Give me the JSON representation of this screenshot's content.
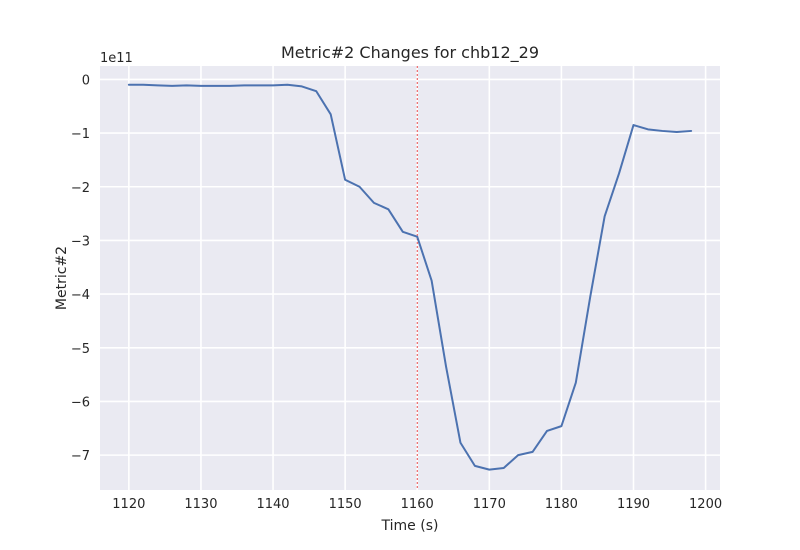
{
  "chart_data": {
    "type": "line",
    "title": "Metric#2 Changes for chb12_29",
    "xlabel": "Time (s)",
    "ylabel": "Metric#2",
    "y_offset_text": "1e11",
    "xlim": [
      1116,
      1202
    ],
    "ylim": [
      -7.65,
      0.25
    ],
    "x_ticks": [
      1120,
      1130,
      1140,
      1150,
      1160,
      1170,
      1180,
      1190,
      1200
    ],
    "y_ticks": [
      0,
      -1,
      -2,
      -3,
      -4,
      -5,
      -6,
      -7
    ],
    "x_tick_labels": [
      "1120",
      "1130",
      "1140",
      "1150",
      "1160",
      "1170",
      "1180",
      "1190",
      "1200"
    ],
    "y_tick_labels": [
      "0",
      "−1",
      "−2",
      "−3",
      "−4",
      "−5",
      "−6",
      "−7"
    ],
    "grid": true,
    "vline": {
      "x": 1160,
      "color": "#e41a1c",
      "style": "dashed"
    },
    "series": [
      {
        "color": "#4c72b0",
        "x": [
          1120,
          1122,
          1124,
          1126,
          1128,
          1130,
          1132,
          1134,
          1136,
          1138,
          1140,
          1142,
          1144,
          1146,
          1148,
          1150,
          1152,
          1154,
          1156,
          1158,
          1160,
          1162,
          1164,
          1166,
          1168,
          1170,
          1172,
          1174,
          1176,
          1178,
          1180,
          1182,
          1184,
          1186,
          1188,
          1190,
          1192,
          1194,
          1196,
          1198
        ],
        "y": [
          -0.1,
          -0.1,
          -0.11,
          -0.12,
          -0.11,
          -0.12,
          -0.12,
          -0.12,
          -0.11,
          -0.11,
          -0.11,
          -0.1,
          -0.13,
          -0.22,
          -0.65,
          -1.87,
          -2.0,
          -2.3,
          -2.42,
          -2.84,
          -2.93,
          -3.75,
          -5.35,
          -6.77,
          -7.2,
          -7.27,
          -7.24,
          -7.0,
          -6.94,
          -6.55,
          -6.46,
          -5.65,
          -4.05,
          -2.55,
          -1.75,
          -0.85,
          -0.93,
          -0.96,
          -0.98,
          -0.96
        ]
      }
    ]
  }
}
